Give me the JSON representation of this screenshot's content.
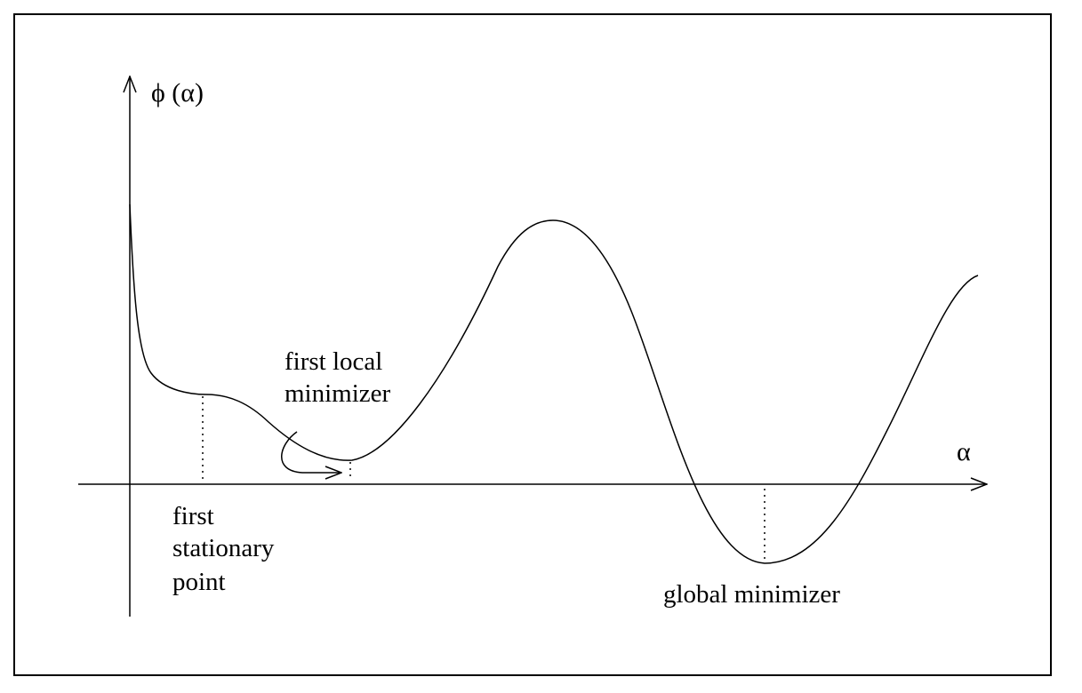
{
  "diagram": {
    "y_axis_label": "ϕ (α)",
    "x_axis_label": "α",
    "annotations": {
      "first_local_minimizer": [
        "first local",
        "minimizer"
      ],
      "first_stationary_point": [
        "first",
        "stationary",
        "point"
      ],
      "global_minimizer": "global minimizer"
    }
  }
}
